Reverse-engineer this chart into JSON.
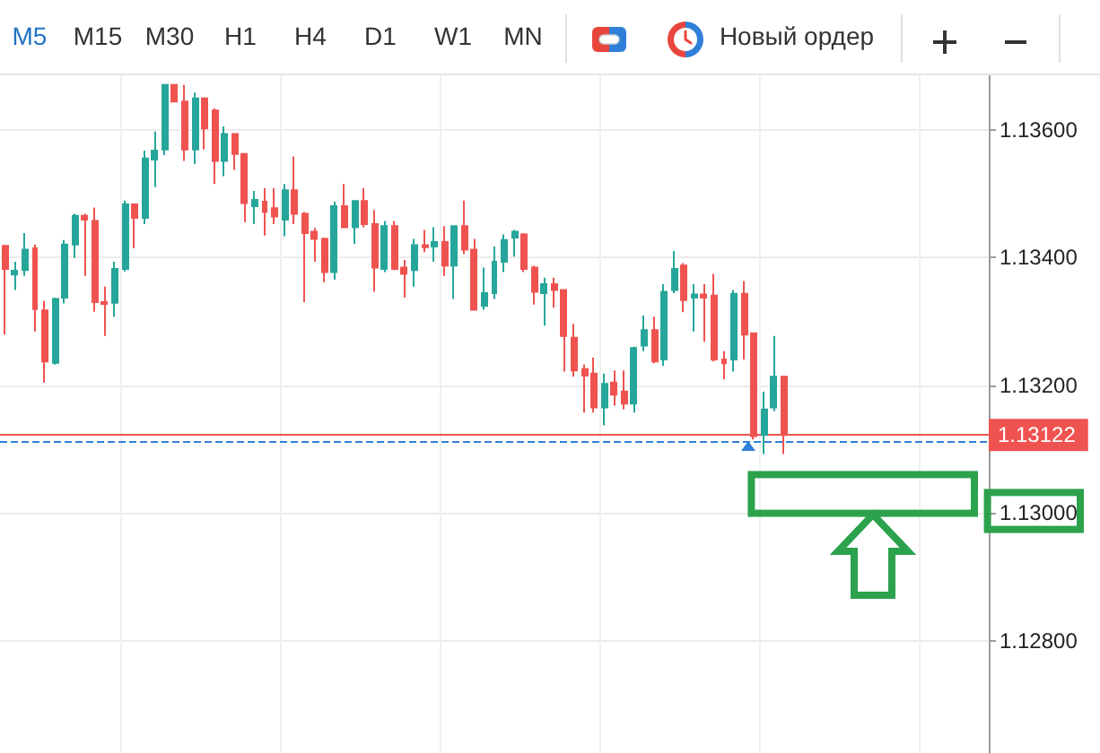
{
  "chart_data": {
    "type": "candlestick",
    "annotations": [
      "M5",
      "M15",
      "M30",
      "H1",
      "H4",
      "D1",
      "W1",
      "MN",
      "Новый ордер"
    ],
    "categories": [
      null,
      null,
      null,
      null,
      null,
      null,
      null,
      null,
      null,
      null,
      null,
      null,
      null,
      null,
      null,
      null,
      null,
      null,
      null,
      null,
      null,
      null,
      null,
      null,
      null,
      null,
      null,
      null,
      null,
      null,
      null,
      null,
      null,
      null,
      null,
      null,
      null,
      null,
      null,
      null,
      null,
      null,
      null,
      null,
      null,
      null,
      null,
      null,
      null,
      null,
      null,
      null,
      null,
      null,
      null,
      null,
      null,
      null,
      null,
      null,
      null,
      null,
      null,
      null,
      null,
      null,
      null,
      null,
      null,
      null,
      null,
      null,
      null,
      null,
      null,
      null,
      null,
      null,
      null,
      null,
      null,
      null,
      null,
      null,
      null,
      null,
      null,
      null,
      null,
      null,
      null,
      null,
      null,
      null,
      null,
      null,
      null,
      null,
      null
    ],
    "ohlc": [
      [
        1.13418,
        1.13418,
        1.13279,
        1.13382
      ],
      [
        1.13373,
        1.13393,
        1.13349,
        1.13379
      ],
      [
        1.1338,
        1.13438,
        1.13371,
        1.13412
      ],
      [
        1.13414,
        1.1342,
        1.13284,
        1.13319
      ],
      [
        1.13317,
        1.13332,
        1.13204,
        1.13237
      ],
      [
        1.13235,
        1.13337,
        1.13232,
        1.13335
      ],
      [
        1.13337,
        1.13427,
        1.13328,
        1.1342
      ],
      [
        1.1342,
        1.13468,
        1.13399,
        1.13465
      ],
      [
        1.13465,
        1.13468,
        1.13371,
        1.13459
      ],
      [
        1.13457,
        1.13478,
        1.13315,
        1.1333
      ],
      [
        1.1333,
        1.13354,
        1.13277,
        1.13327
      ],
      [
        1.13329,
        1.13393,
        1.13307,
        1.13382
      ],
      [
        1.13382,
        1.13489,
        1.13378,
        1.13483
      ],
      [
        1.13483,
        1.13483,
        1.13414,
        1.13462
      ],
      [
        1.13462,
        1.13567,
        1.13452,
        1.13555
      ],
      [
        1.13553,
        1.13597,
        1.1351,
        1.13567
      ],
      [
        1.13569,
        1.1367,
        1.1356,
        1.1367
      ],
      [
        1.1367,
        1.1367,
        1.13644,
        1.13644
      ],
      [
        1.13644,
        1.1367,
        1.13551,
        1.13569
      ],
      [
        1.13569,
        1.13658,
        1.13546,
        1.13649
      ],
      [
        1.13649,
        1.13649,
        1.13569,
        1.13602
      ],
      [
        1.1363,
        1.13633,
        1.13515,
        1.13551
      ],
      [
        1.13551,
        1.13605,
        1.13527,
        1.13593
      ],
      [
        1.13593,
        1.13593,
        1.13537,
        1.13562
      ],
      [
        1.13562,
        1.13562,
        1.13455,
        1.13485
      ],
      [
        1.1348,
        1.13504,
        1.13452,
        1.1349
      ],
      [
        1.13487,
        1.13508,
        1.13434,
        1.13471
      ],
      [
        1.13477,
        1.13508,
        1.13452,
        1.13464
      ],
      [
        1.13459,
        1.13515,
        1.13433,
        1.13505
      ],
      [
        1.13505,
        1.13558,
        1.13452,
        1.13468
      ],
      [
        1.13468,
        1.13471,
        1.1333,
        1.13438
      ],
      [
        1.1344,
        1.13446,
        1.13393,
        1.13429
      ],
      [
        1.13429,
        1.13431,
        1.13361,
        1.13377
      ],
      [
        1.13377,
        1.13487,
        1.13365,
        1.1348
      ],
      [
        1.1348,
        1.13515,
        1.13446,
        1.13447
      ],
      [
        1.13447,
        1.13489,
        1.13421,
        1.13488
      ],
      [
        1.13488,
        1.13508,
        1.13447,
        1.13452
      ],
      [
        1.13452,
        1.13474,
        1.13346,
        1.13384
      ],
      [
        1.13382,
        1.13457,
        1.13377,
        1.13449
      ],
      [
        1.13449,
        1.13457,
        1.1338,
        1.13382
      ],
      [
        1.13384,
        1.13396,
        1.13337,
        1.13374
      ],
      [
        1.1338,
        1.13429,
        1.13354,
        1.13419
      ],
      [
        1.13419,
        1.13443,
        1.13408,
        1.13416
      ],
      [
        1.13417,
        1.13447,
        1.13393,
        1.13424
      ],
      [
        1.13424,
        1.13449,
        1.13371,
        1.13387
      ],
      [
        1.13387,
        1.13449,
        1.13335,
        1.13449
      ],
      [
        1.13449,
        1.13489,
        1.13405,
        1.13412
      ],
      [
        1.13412,
        1.13429,
        1.13318,
        1.13318
      ],
      [
        1.13324,
        1.13384,
        1.13318,
        1.13344
      ],
      [
        1.13344,
        1.13417,
        1.13335,
        1.13393
      ],
      [
        1.13393,
        1.13436,
        1.13377,
        1.13427
      ],
      [
        1.13431,
        1.13443,
        1.13401,
        1.1344
      ],
      [
        1.13436,
        1.13438,
        1.13377,
        1.13382
      ],
      [
        1.13384,
        1.13387,
        1.13326,
        1.13346
      ],
      [
        1.13344,
        1.13368,
        1.13293,
        1.13358
      ],
      [
        1.13358,
        1.13368,
        1.13321,
        1.13349
      ],
      [
        1.13349,
        1.13349,
        1.13221,
        1.13277
      ],
      [
        1.13274,
        1.13296,
        1.13213,
        1.13223
      ],
      [
        1.13225,
        1.13232,
        1.13157,
        1.13215
      ],
      [
        1.13218,
        1.13243,
        1.13157,
        1.13165
      ],
      [
        1.13165,
        1.13218,
        1.13137,
        1.13202
      ],
      [
        1.13204,
        1.13223,
        1.13168,
        1.13185
      ],
      [
        1.1319,
        1.13223,
        1.13162,
        1.13171
      ],
      [
        1.13171,
        1.1326,
        1.13157,
        1.13258
      ],
      [
        1.13262,
        1.13309,
        1.13253,
        1.13286
      ],
      [
        1.13286,
        1.13307,
        1.13234,
        1.13237
      ],
      [
        1.1324,
        1.13358,
        1.1323,
        1.13346
      ],
      [
        1.13349,
        1.1341,
        1.13344,
        1.13382
      ],
      [
        1.13387,
        1.13391,
        1.13314,
        1.13333
      ],
      [
        1.13337,
        1.13358,
        1.13284,
        1.13342
      ],
      [
        1.13342,
        1.13358,
        1.13268,
        1.13337
      ],
      [
        1.1334,
        1.13374,
        1.13237,
        1.1324
      ],
      [
        1.1324,
        1.13253,
        1.13209,
        1.13234
      ],
      [
        1.1324,
        1.13349,
        1.13221,
        1.13343
      ],
      [
        1.13343,
        1.13363,
        1.1324,
        1.13279
      ],
      [
        1.13281,
        1.13281,
        1.13115,
        1.1312
      ],
      [
        1.13122,
        1.1319,
        1.13092,
        1.13162
      ],
      [
        1.13165,
        1.13277,
        1.13159,
        1.13213
      ],
      [
        1.13213,
        1.13213,
        1.13092,
        1.13122
      ],
      null,
      null,
      null,
      null,
      null,
      null,
      null,
      null,
      null,
      null,
      null,
      null,
      null,
      null,
      null,
      null,
      null,
      null,
      null,
      null
    ],
    "colors": [
      "#ef5350",
      "#26a69a",
      "#26a69a",
      "#ef5350",
      "#ef5350",
      "#26a69a",
      "#26a69a",
      "#26a69a",
      "#ef5350",
      "#ef5350",
      "#ef5350",
      "#26a69a",
      "#26a69a",
      "#ef5350",
      "#26a69a",
      "#26a69a",
      "#26a69a",
      "#ef5350",
      "#ef5350",
      "#26a69a",
      "#ef5350",
      "#ef5350",
      "#26a69a",
      "#ef5350",
      "#ef5350",
      "#26a69a",
      "#ef5350",
      "#ef5350",
      "#26a69a",
      "#ef5350",
      "#ef5350",
      "#ef5350",
      "#ef5350",
      "#26a69a",
      "#ef5350",
      "#26a69a",
      "#ef5350",
      "#ef5350",
      "#26a69a",
      "#ef5350",
      "#ef5350",
      "#26a69a",
      "#ef5350",
      "#26a69a",
      "#ef5350",
      "#26a69a",
      "#ef5350",
      "#ef5350",
      "#26a69a",
      "#26a69a",
      "#26a69a",
      "#26a69a",
      "#ef5350",
      "#ef5350",
      "#26a69a",
      "#ef5350",
      "#ef5350",
      "#ef5350",
      "#ef5350",
      "#ef5350",
      "#26a69a",
      "#ef5350",
      "#ef5350",
      "#26a69a",
      "#26a69a",
      "#ef5350",
      "#26a69a",
      "#26a69a",
      "#ef5350",
      "#26a69a",
      "#ef5350",
      "#ef5350",
      "#ef5350",
      "#26a69a",
      "#ef5350",
      "#ef5350",
      "#26a69a",
      "#26a69a",
      "#ef5350",
      null,
      null,
      null,
      null,
      null,
      null,
      null,
      null,
      null,
      null,
      null,
      null,
      null,
      null,
      null,
      null,
      null,
      null,
      null,
      null
    ],
    "ylim": [
      1.12624,
      1.13685
    ],
    "yticks": [
      {
        "value": 1.128,
        "label": "1.12800"
      },
      {
        "value": 1.13,
        "label": "1.13000"
      },
      {
        "value": 1.132,
        "label": "1.13200"
      },
      {
        "value": 1.134,
        "label": "1.13400"
      },
      {
        "value": 1.136,
        "label": "1.13600"
      }
    ],
    "ref_lines": [
      {
        "axis": "y",
        "value": 1.13122,
        "label": "1.13122",
        "color": "#ef5350",
        "line_style": "solid"
      },
      {
        "axis": "y",
        "value": 1.13112,
        "color": "#2f7fd8",
        "line_style": "dashed"
      }
    ],
    "grid": true,
    "tick_labels": "y"
  }
}
